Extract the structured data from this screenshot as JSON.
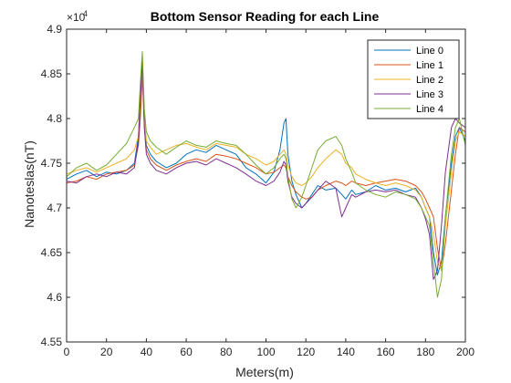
{
  "chart_data": {
    "type": "line",
    "title": "Bottom Sensor Reading for each Line",
    "xlabel": "Meters(m)",
    "ylabel": "Nanoteslas(nT)",
    "y_exponent_base": "×10",
    "y_exponent_power": "4",
    "xlim": [
      0,
      200
    ],
    "ylim": [
      4.55,
      4.9
    ],
    "xticks": [
      0,
      20,
      40,
      60,
      80,
      100,
      120,
      140,
      160,
      180,
      200
    ],
    "xtick_labels": [
      "0",
      "20",
      "40",
      "60",
      "80",
      "100",
      "120",
      "140",
      "160",
      "180",
      "200"
    ],
    "yticks": [
      4.55,
      4.6,
      4.65,
      4.7,
      4.75,
      4.8,
      4.85,
      4.9
    ],
    "ytick_labels": [
      "4.55",
      "4.6",
      "4.65",
      "4.7",
      "4.75",
      "4.8",
      "4.85",
      "4.9"
    ],
    "grid": false,
    "legend_position": "top-right",
    "x": [
      0,
      5,
      10,
      15,
      20,
      25,
      30,
      34,
      36,
      37,
      38,
      39,
      40,
      42,
      45,
      50,
      55,
      60,
      65,
      70,
      75,
      80,
      85,
      90,
      95,
      100,
      104,
      107,
      109,
      110,
      111,
      113,
      115,
      118,
      120,
      123,
      126,
      130,
      135,
      138,
      140,
      143,
      145,
      150,
      155,
      160,
      165,
      170,
      175,
      178,
      180,
      182,
      184,
      186,
      188,
      190,
      193,
      195,
      197,
      200
    ],
    "series": [
      {
        "name": "Line 0",
        "color": "#0072BD",
        "values": [
          4.732,
          4.738,
          4.742,
          4.735,
          4.74,
          4.738,
          4.742,
          4.75,
          4.78,
          4.83,
          4.865,
          4.8,
          4.77,
          4.76,
          4.752,
          4.745,
          4.75,
          4.76,
          4.765,
          4.762,
          4.77,
          4.765,
          4.76,
          4.745,
          4.738,
          4.728,
          4.74,
          4.765,
          4.795,
          4.8,
          4.76,
          4.73,
          4.715,
          4.7,
          4.705,
          4.715,
          4.725,
          4.72,
          4.722,
          4.715,
          4.71,
          4.72,
          4.715,
          4.718,
          4.725,
          4.72,
          4.722,
          4.718,
          4.722,
          4.712,
          4.7,
          4.69,
          4.65,
          4.625,
          4.64,
          4.69,
          4.75,
          4.78,
          4.79,
          4.775
        ]
      },
      {
        "name": "Line 1",
        "color": "#D95319",
        "values": [
          4.728,
          4.73,
          4.735,
          4.732,
          4.738,
          4.74,
          4.742,
          4.748,
          4.77,
          4.8,
          4.85,
          4.79,
          4.765,
          4.755,
          4.748,
          4.742,
          4.748,
          4.752,
          4.755,
          4.752,
          4.76,
          4.758,
          4.755,
          4.75,
          4.745,
          4.738,
          4.74,
          4.745,
          4.748,
          4.745,
          4.735,
          4.725,
          4.718,
          4.712,
          4.71,
          4.712,
          4.72,
          4.725,
          4.73,
          4.728,
          4.725,
          4.73,
          4.728,
          4.725,
          4.728,
          4.73,
          4.732,
          4.73,
          4.725,
          4.718,
          4.71,
          4.7,
          4.69,
          4.655,
          4.63,
          4.66,
          4.72,
          4.76,
          4.79,
          4.785
        ]
      },
      {
        "name": "Line 2",
        "color": "#EDB120",
        "values": [
          4.738,
          4.742,
          4.745,
          4.74,
          4.745,
          4.75,
          4.755,
          4.765,
          4.78,
          4.82,
          4.86,
          4.8,
          4.775,
          4.768,
          4.76,
          4.765,
          4.77,
          4.772,
          4.768,
          4.765,
          4.772,
          4.77,
          4.768,
          4.76,
          4.755,
          4.748,
          4.752,
          4.76,
          4.765,
          4.76,
          4.748,
          4.735,
          4.728,
          4.725,
          4.728,
          4.735,
          4.745,
          4.755,
          4.765,
          4.76,
          4.75,
          4.745,
          4.738,
          4.732,
          4.728,
          4.725,
          4.728,
          4.725,
          4.72,
          4.712,
          4.7,
          4.69,
          4.67,
          4.64,
          4.63,
          4.68,
          4.74,
          4.775,
          4.785,
          4.78
        ]
      },
      {
        "name": "Line 3",
        "color": "#7E2F8E",
        "values": [
          4.73,
          4.728,
          4.735,
          4.738,
          4.735,
          4.74,
          4.738,
          4.745,
          4.775,
          4.82,
          4.865,
          4.79,
          4.76,
          4.75,
          4.742,
          4.738,
          4.745,
          4.75,
          4.752,
          4.748,
          4.755,
          4.75,
          4.745,
          4.738,
          4.73,
          4.725,
          4.73,
          4.74,
          4.752,
          4.748,
          4.73,
          4.712,
          4.705,
          4.7,
          4.705,
          4.712,
          4.72,
          4.73,
          4.722,
          4.69,
          4.7,
          4.715,
          4.712,
          4.718,
          4.72,
          4.718,
          4.72,
          4.715,
          4.712,
          4.7,
          4.688,
          4.67,
          4.62,
          4.63,
          4.68,
          4.74,
          4.79,
          4.8,
          4.795,
          4.79
        ]
      },
      {
        "name": "Line 4",
        "color": "#77AC30",
        "values": [
          4.735,
          4.745,
          4.75,
          4.742,
          4.748,
          4.76,
          4.772,
          4.79,
          4.8,
          4.84,
          4.875,
          4.81,
          4.785,
          4.775,
          4.768,
          4.76,
          4.768,
          4.775,
          4.77,
          4.768,
          4.775,
          4.772,
          4.77,
          4.76,
          4.748,
          4.738,
          4.745,
          4.755,
          4.76,
          4.755,
          4.735,
          4.71,
          4.7,
          4.712,
          4.725,
          4.745,
          4.765,
          4.775,
          4.78,
          4.77,
          4.755,
          4.74,
          4.728,
          4.72,
          4.715,
          4.712,
          4.718,
          4.715,
          4.71,
          4.7,
          4.69,
          4.68,
          4.64,
          4.6,
          4.62,
          4.69,
          4.76,
          4.79,
          4.8,
          4.77
        ]
      }
    ]
  }
}
